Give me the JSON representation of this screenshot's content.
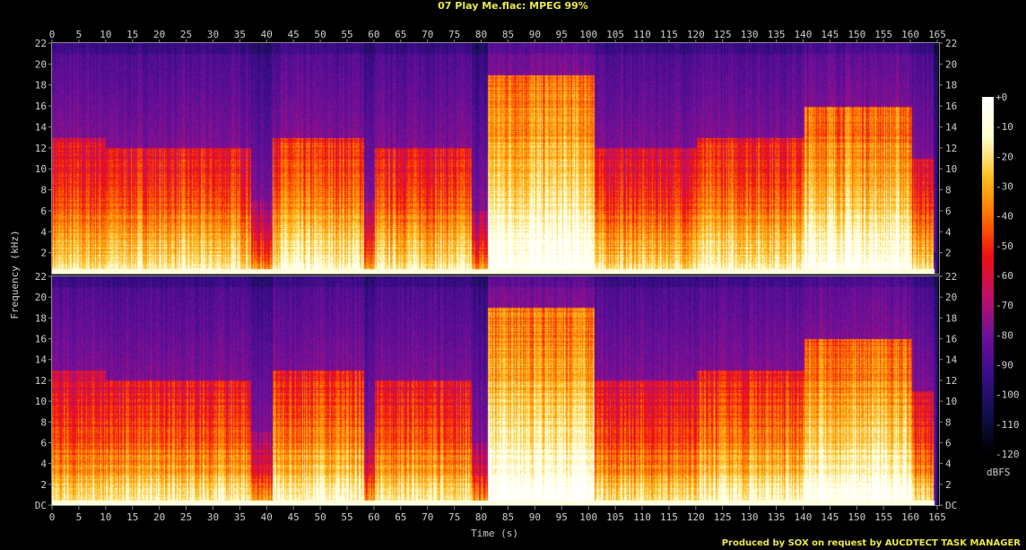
{
  "title": "07 Play Me.flac: MPEG 99%",
  "credit": "Produced by SOX on request by AUCDTECT TASK MANAGER",
  "chart_data": {
    "type": "heatmap",
    "title": "07 Play Me.flac: MPEG 99%",
    "xlabel": "Time (s)",
    "ylabel": "Frequency (kHz)",
    "xlim": [
      0,
      165
    ],
    "ylim": [
      0,
      22
    ],
    "x_ticks": [
      "0",
      "5",
      "10",
      "15",
      "20",
      "25",
      "30",
      "35",
      "40",
      "45",
      "50",
      "55",
      "60",
      "65",
      "70",
      "75",
      "80",
      "85",
      "90",
      "95",
      "100",
      "105",
      "110",
      "115",
      "120",
      "125",
      "130",
      "135",
      "140",
      "145",
      "150",
      "155",
      "160",
      "165"
    ],
    "y_ticks": [
      "DC",
      "2",
      "4",
      "6",
      "8",
      "10",
      "12",
      "14",
      "16",
      "18",
      "20",
      "22"
    ],
    "channels": 2,
    "colorbar": {
      "label": "dBFS",
      "ticks": [
        "+0",
        "-10",
        "-20",
        "-30",
        "-40",
        "-50",
        "-60",
        "-70",
        "-80",
        "-90",
        "-100",
        "-110",
        "-120"
      ],
      "range": [
        -120,
        0
      ],
      "colors": [
        "#000000",
        "#10104a",
        "#3a0c8a",
        "#70109a",
        "#c0106a",
        "#f01010",
        "#ff7000",
        "#ffc020",
        "#ffffd0",
        "#ffffff"
      ]
    },
    "energy_profile": [
      {
        "t": [
          0,
          10
        ],
        "upper_khz": 13,
        "level": 0.55
      },
      {
        "t": [
          10,
          37
        ],
        "upper_khz": 12,
        "level": 0.58
      },
      {
        "t": [
          37,
          41
        ],
        "upper_khz": 7,
        "level": 0.45
      },
      {
        "t": [
          41,
          58
        ],
        "upper_khz": 13,
        "level": 0.62
      },
      {
        "t": [
          58,
          60
        ],
        "upper_khz": 7,
        "level": 0.45
      },
      {
        "t": [
          60,
          78
        ],
        "upper_khz": 12,
        "level": 0.58
      },
      {
        "t": [
          78,
          81
        ],
        "upper_khz": 6,
        "level": 0.45
      },
      {
        "t": [
          81,
          101
        ],
        "upper_khz": 19,
        "level": 0.72
      },
      {
        "t": [
          101,
          120
        ],
        "upper_khz": 12,
        "level": 0.55
      },
      {
        "t": [
          120,
          140
        ],
        "upper_khz": 13,
        "level": 0.6
      },
      {
        "t": [
          140,
          160
        ],
        "upper_khz": 16,
        "level": 0.7
      },
      {
        "t": [
          160,
          164
        ],
        "upper_khz": 11,
        "level": 0.55
      },
      {
        "t": [
          164,
          165
        ],
        "upper_khz": 2,
        "level": 0.3
      }
    ]
  }
}
